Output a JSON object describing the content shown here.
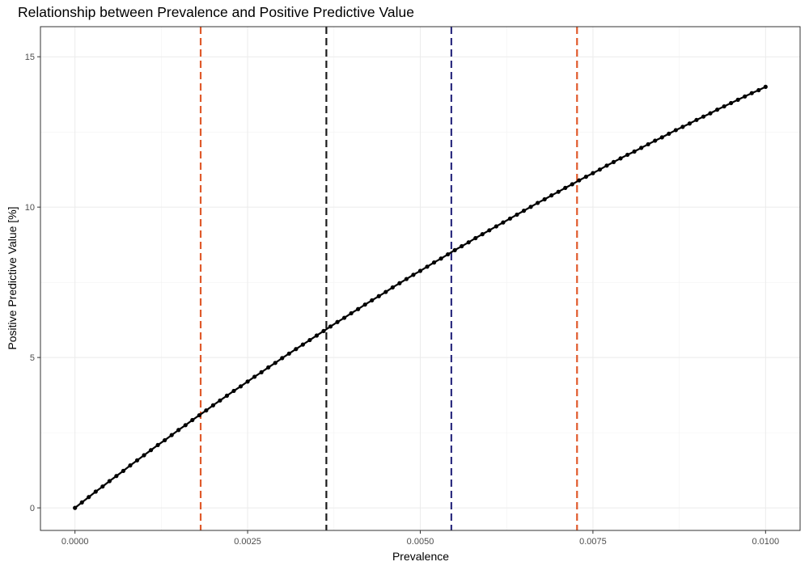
{
  "chart_data": {
    "type": "line",
    "title": "Relationship between Prevalence and Positive Predictive Value",
    "xlabel": "Prevalence",
    "ylabel": "Positive Predictive Value [%]",
    "xlim": [
      -0.0005,
      0.0105
    ],
    "ylim": [
      -0.75,
      16.0
    ],
    "x_ticks": [
      0.0,
      0.0025,
      0.005,
      0.0075,
      0.01
    ],
    "x_tick_labels": [
      "0.0000",
      "0.0025",
      "0.0050",
      "0.0075",
      "0.0100"
    ],
    "y_ticks": [
      0,
      5,
      10,
      15
    ],
    "y_tick_labels": [
      "0",
      "5",
      "10",
      "15"
    ],
    "grid": true,
    "series": [
      {
        "color": "#000000",
        "markers": true,
        "x": [
          0.0,
          0.0001,
          0.0002,
          0.0003,
          0.0004,
          0.0005,
          0.0006,
          0.0007,
          0.0008,
          0.0009,
          0.001,
          0.0011,
          0.0012,
          0.0013,
          0.0014,
          0.0015,
          0.0016,
          0.0017,
          0.0018,
          0.0019,
          0.002,
          0.0021,
          0.0022,
          0.0023,
          0.0024,
          0.0025,
          0.0026,
          0.0027,
          0.0028,
          0.0029,
          0.003,
          0.0031,
          0.0032,
          0.0033,
          0.0034,
          0.0035,
          0.0036,
          0.0037,
          0.0038,
          0.0039,
          0.004,
          0.0041,
          0.0042,
          0.0043,
          0.0044,
          0.0045,
          0.0046,
          0.0047,
          0.0048,
          0.0049,
          0.005,
          0.0051,
          0.0052,
          0.0053,
          0.0054,
          0.0055,
          0.0056,
          0.0057,
          0.0058,
          0.0059,
          0.006,
          0.0061,
          0.0062,
          0.0063,
          0.0064,
          0.0065,
          0.0066,
          0.0067,
          0.0068,
          0.0069,
          0.007,
          0.0071,
          0.0072,
          0.0073,
          0.0074,
          0.0075,
          0.0076,
          0.0077,
          0.0078,
          0.0079,
          0.008,
          0.0081,
          0.0082,
          0.0083,
          0.0084,
          0.0085,
          0.0086,
          0.0087,
          0.0088,
          0.0089,
          0.009,
          0.0091,
          0.0092,
          0.0093,
          0.0094,
          0.0095,
          0.0096,
          0.0097,
          0.0098,
          0.0099,
          0.01
        ],
        "y": [
          0.0,
          0.18,
          0.36,
          0.54,
          0.71,
          0.89,
          1.06,
          1.23,
          1.41,
          1.58,
          1.75,
          1.92,
          2.09,
          2.25,
          2.42,
          2.59,
          2.75,
          2.92,
          3.08,
          3.24,
          3.41,
          3.57,
          3.73,
          3.89,
          4.04,
          4.2,
          4.36,
          4.51,
          4.67,
          4.82,
          4.98,
          5.13,
          5.28,
          5.43,
          5.58,
          5.73,
          5.88,
          6.03,
          6.18,
          6.32,
          6.47,
          6.61,
          6.76,
          6.9,
          7.04,
          7.18,
          7.33,
          7.47,
          7.61,
          7.75,
          7.88,
          8.02,
          8.16,
          8.29,
          8.43,
          8.57,
          8.7,
          8.83,
          8.97,
          9.1,
          9.23,
          9.36,
          9.49,
          9.62,
          9.75,
          9.88,
          10.01,
          10.14,
          10.26,
          10.39,
          10.51,
          10.64,
          10.76,
          10.89,
          11.01,
          11.13,
          11.25,
          11.38,
          11.5,
          11.62,
          11.74,
          11.85,
          11.97,
          12.09,
          12.21,
          12.32,
          12.44,
          12.56,
          12.67,
          12.78,
          12.9,
          13.01,
          13.12,
          13.24,
          13.35,
          13.46,
          13.57,
          13.68,
          13.79,
          13.89,
          14.0
        ]
      }
    ],
    "reference_lines": [
      {
        "axis": "x",
        "value": 0.00182,
        "color": "#e05a2b",
        "style": "dashed"
      },
      {
        "axis": "x",
        "value": 0.00364,
        "color": "#1a1a1a",
        "style": "dashed"
      },
      {
        "axis": "x",
        "value": 0.00545,
        "color": "#2e2e80",
        "style": "dashed"
      },
      {
        "axis": "x",
        "value": 0.00727,
        "color": "#e05a2b",
        "style": "dashed"
      }
    ]
  }
}
